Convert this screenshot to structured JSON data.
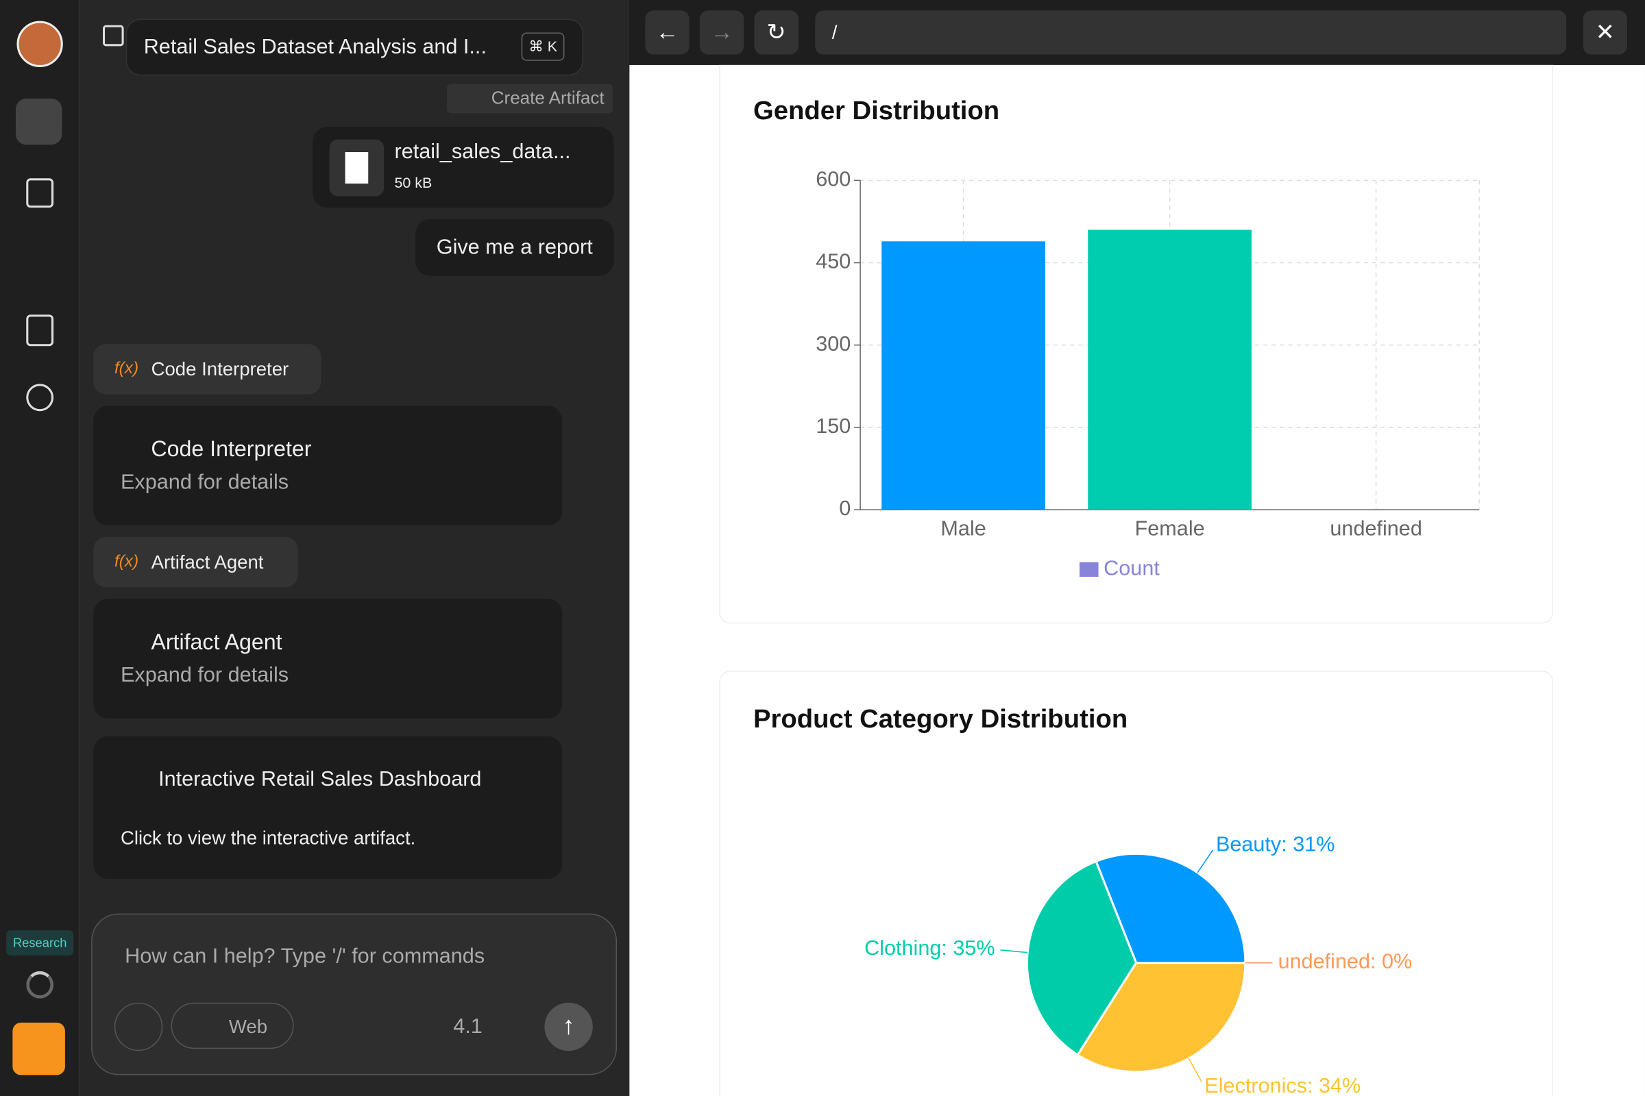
{
  "sidebar": {
    "badge": "Research"
  },
  "chat": {
    "title": "Retail Sales Dataset Analysis and I...",
    "shortcut": "⌘ K",
    "create_artifact": "Create Artifact",
    "file": {
      "name": "retail_sales_data...",
      "size": "50 kB"
    },
    "user_message": "Give me a report",
    "tool_calls": [
      {
        "tag": "Code Interpreter",
        "title": "Code Interpreter",
        "subtitle": "Expand for details"
      },
      {
        "tag": "Artifact Agent",
        "title": "Artifact Agent",
        "subtitle": "Expand for details"
      }
    ],
    "artifact": {
      "title": "Interactive Retail Sales Dashboard",
      "description": "Click to view the interactive artifact."
    },
    "input": {
      "placeholder": "How can I help? Type '/' for commands",
      "web": "Web",
      "model": "4.1"
    }
  },
  "browser": {
    "url": "/"
  },
  "chart_data": [
    {
      "type": "bar",
      "title": "Gender Distribution",
      "categories": [
        "Male",
        "Female",
        "undefined"
      ],
      "series": [
        {
          "name": "Count",
          "color": "#8884d8",
          "values": [
            489,
            510,
            0
          ]
        }
      ],
      "colors": [
        "#0099ff",
        "#00ccb0",
        "#ffc233"
      ],
      "ylim": [
        0,
        600
      ],
      "yticks": [
        0,
        150,
        300,
        450,
        600
      ],
      "grid": true
    },
    {
      "type": "pie",
      "title": "Product Category Distribution",
      "categories": [
        "Beauty",
        "Clothing",
        "Electronics",
        "undefined"
      ],
      "values": [
        31,
        35,
        34,
        0
      ],
      "value_labels": [
        "Beauty: 31%",
        "Clothing: 35%",
        "Electronics: 34%",
        "undefined: 0%"
      ],
      "colors": [
        "#0099ff",
        "#00ccaa",
        "#ffc233",
        "#ff9955"
      ]
    }
  ]
}
